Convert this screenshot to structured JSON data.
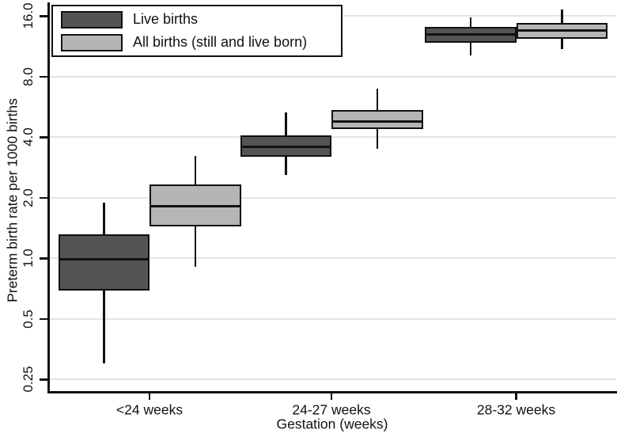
{
  "chart_data": {
    "type": "box",
    "title": "",
    "xlabel": "Gestation (weeks)",
    "ylabel": "Preterm birth rate per 1000 births",
    "yscale": "log2",
    "ylim": [
      0.21,
      18
    ],
    "yticks": [
      16,
      8,
      4,
      2,
      1,
      0.5,
      0.25
    ],
    "ytick_labels": [
      "16.0",
      "8.0",
      "4.0",
      "2.0",
      "1.0",
      "0.5",
      "0.25"
    ],
    "categories": [
      "<24 weeks",
      "24-27 weeks",
      "28-32 weeks"
    ],
    "grid": "horizontal",
    "legend_position": "top-left",
    "colors": {
      "axis": "#111111",
      "gridline": "#e4e4e4",
      "background": "#ffffff"
    },
    "series": [
      {
        "name": "Live births",
        "color": "#545454",
        "boxes": [
          {
            "whisker_low": 0.3,
            "q1": 0.69,
            "median": 0.99,
            "q3": 1.32,
            "whisker_high": 1.9
          },
          {
            "whisker_low": 2.6,
            "q1": 3.2,
            "median": 3.6,
            "q3": 4.1,
            "whisker_high": 5.3
          },
          {
            "whisker_low": 10.2,
            "q1": 11.8,
            "median": 13.0,
            "q3": 14.1,
            "whisker_high": 15.7
          }
        ]
      },
      {
        "name": "All births (still and live born)",
        "color": "#b5b5b5",
        "boxes": [
          {
            "whisker_low": 0.91,
            "q1": 1.44,
            "median": 1.82,
            "q3": 2.34,
            "whisker_high": 3.24
          },
          {
            "whisker_low": 3.5,
            "q1": 4.4,
            "median": 4.8,
            "q3": 5.45,
            "whisker_high": 7.0
          },
          {
            "whisker_low": 11.0,
            "q1": 12.4,
            "median": 13.6,
            "q3": 14.8,
            "whisker_high": 17.2
          }
        ]
      }
    ]
  }
}
